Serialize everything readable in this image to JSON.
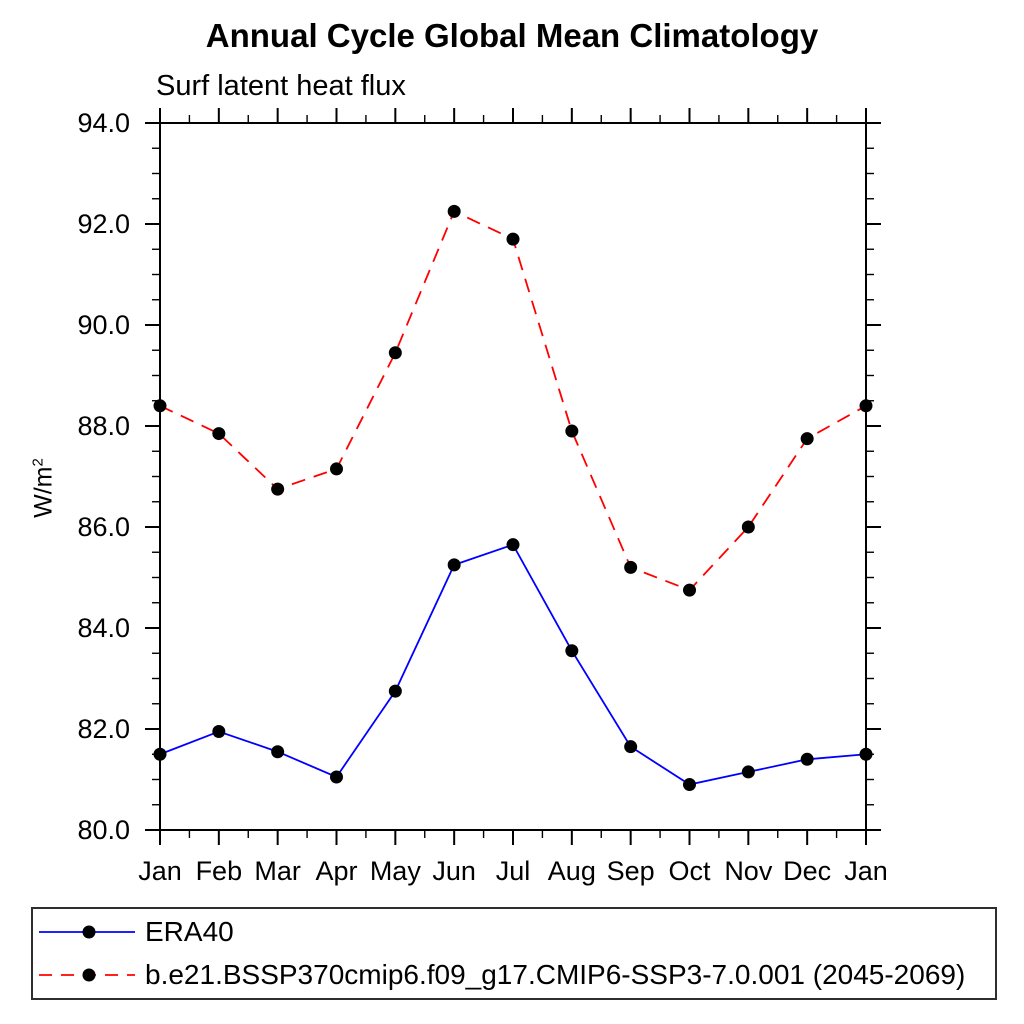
{
  "chart_data": {
    "type": "line",
    "title": "Annual Cycle Global Mean Climatology",
    "subtitle": "Surf latent heat flux",
    "ylabel": "W/m",
    "ylabel_sup": "2",
    "xlabel": "",
    "categories": [
      "Jan",
      "Feb",
      "Mar",
      "Apr",
      "May",
      "Jun",
      "Jul",
      "Aug",
      "Sep",
      "Oct",
      "Nov",
      "Dec",
      "Jan"
    ],
    "ylim": [
      80.0,
      94.0
    ],
    "y_major_step": 2.0,
    "y_minor_step": 0.5,
    "y_tick_labels": [
      "80.0",
      "82.0",
      "84.0",
      "86.0",
      "88.0",
      "90.0",
      "92.0",
      "94.0"
    ],
    "grid": false,
    "legend_position": "bottom",
    "axis_color": "#000000",
    "marker_color": "#000000",
    "series": [
      {
        "name": "ERA40",
        "color": "#0000ff",
        "style": "solid",
        "marker": "circle",
        "values": [
          81.5,
          81.95,
          81.55,
          81.05,
          82.75,
          85.25,
          85.65,
          83.55,
          81.65,
          80.9,
          81.15,
          81.4,
          81.5
        ]
      },
      {
        "name": "b.e21.BSSP370cmip6.f09_g17.CMIP6-SSP3-7.0.001 (2045-2069)",
        "color": "#ff0000",
        "style": "dashed",
        "marker": "circle",
        "values": [
          88.4,
          87.85,
          86.75,
          87.15,
          89.45,
          92.25,
          91.7,
          87.9,
          85.2,
          84.75,
          86.0,
          87.75,
          88.4
        ]
      }
    ]
  }
}
